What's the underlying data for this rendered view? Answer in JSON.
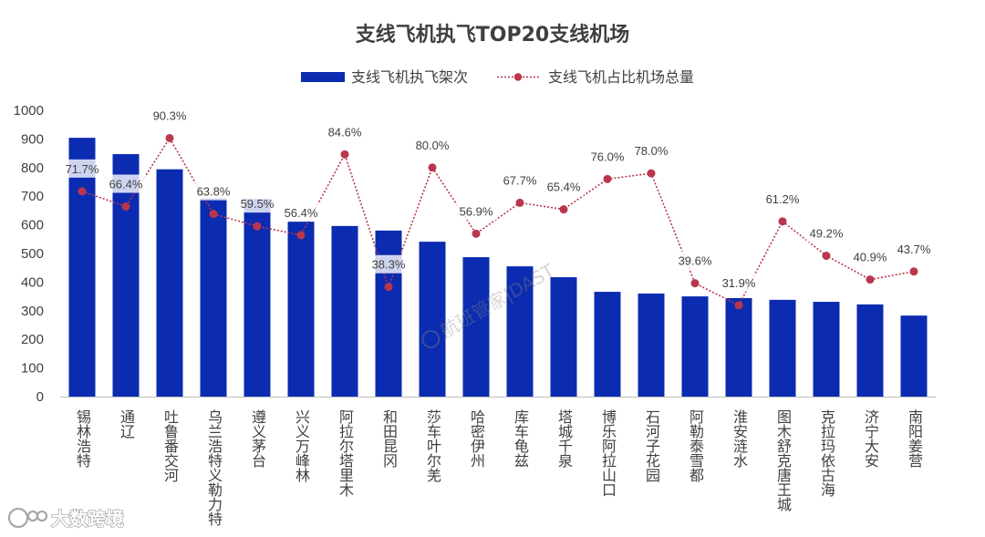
{
  "chart_data": {
    "type": "bar",
    "title": "支线飞机执飞TOP20支线机场",
    "xlabel": "",
    "ylabel": "",
    "categories": [
      "锡林浩特",
      "通辽",
      "吐鲁番交河",
      "乌兰浩特义勒力特",
      "遵义茅台",
      "兴义万峰林",
      "阿拉尔塔里木",
      "和田昆冈",
      "莎车叶尔羌",
      "哈密伊州",
      "库车龟兹",
      "塔城千泉",
      "博乐阿拉山口",
      "石河子花园",
      "阿勒泰雪都",
      "淮安涟水",
      "图木舒克唐王城",
      "克拉玛依古海",
      "济宁大安",
      "南阳姜营"
    ],
    "series": [
      {
        "name": "支线飞机执飞架次",
        "type": "bar",
        "axis": "left",
        "color": "#0b2bb0",
        "values": [
          904,
          847,
          794,
          692,
          690,
          611,
          596,
          580,
          541,
          487,
          455,
          417,
          366,
          360,
          350,
          344,
          338,
          331,
          322,
          283
        ]
      },
      {
        "name": "支线飞机占比机场总量",
        "type": "line",
        "axis": "right",
        "color": "#b9364d",
        "values": [
          71.7,
          66.4,
          90.3,
          63.8,
          59.5,
          56.4,
          84.6,
          38.3,
          80.0,
          56.9,
          67.7,
          65.4,
          76.0,
          78.0,
          39.6,
          31.9,
          61.2,
          49.2,
          40.9,
          43.7
        ],
        "data_labels": [
          "71.7%",
          "66.4%",
          "90.3%",
          "63.8%",
          "59.5%",
          "56.4%",
          "84.6%",
          "38.3%",
          "80.0%",
          "56.9%",
          "67.7%",
          "65.4%",
          "76.0%",
          "78.0%",
          "39.6%",
          "31.9%",
          "61.2%",
          "49.2%",
          "40.9%",
          "43.7%"
        ]
      }
    ],
    "y_ticks": [
      0,
      100,
      200,
      300,
      400,
      500,
      600,
      700,
      800,
      900,
      1000
    ],
    "ylim": [
      0,
      1000
    ],
    "y2lim": [
      0,
      100
    ],
    "grid": false,
    "legend": "top-center"
  },
  "watermarks": {
    "center": "航班管家|DAST",
    "corner": "大数跨境"
  }
}
